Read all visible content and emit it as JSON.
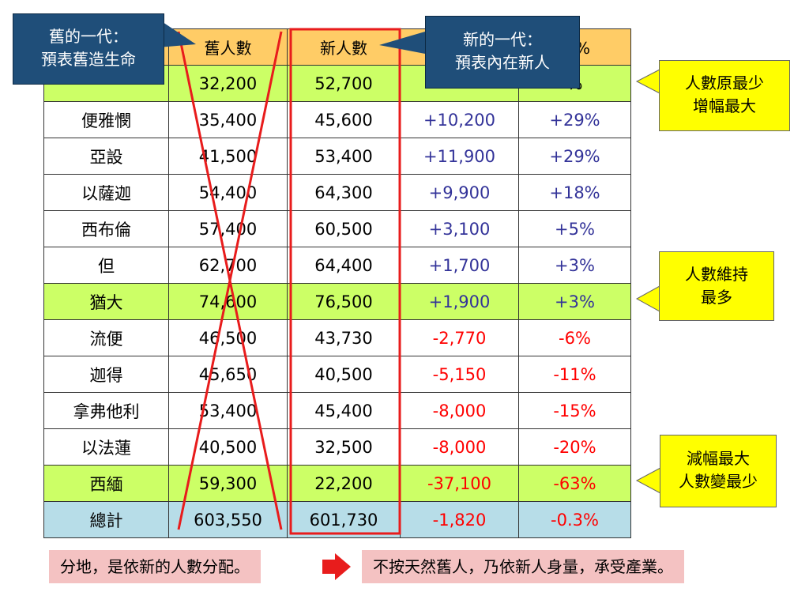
{
  "chart_data": {
    "type": "table",
    "columns": [
      "",
      "舊人數",
      "新人數",
      "",
      "減%"
    ],
    "rows": [
      {
        "name": "",
        "old": "32,200",
        "new": "52,700",
        "diff": "",
        "pct": "%",
        "highlight": true
      },
      {
        "name": "便雅憫",
        "old": "35,400",
        "new": "45,600",
        "diff": "+10,200",
        "pct": "+29%"
      },
      {
        "name": "亞設",
        "old": "41,500",
        "new": "53,400",
        "diff": "+11,900",
        "pct": "+29%"
      },
      {
        "name": "以薩迦",
        "old": "54,400",
        "new": "64,300",
        "diff": "+9,900",
        "pct": "+18%"
      },
      {
        "name": "西布倫",
        "old": "57,400",
        "new": "60,500",
        "diff": "+3,100",
        "pct": "+5%"
      },
      {
        "name": "但",
        "old": "62,700",
        "new": "64,400",
        "diff": "+1,700",
        "pct": "+3%"
      },
      {
        "name": "猶大",
        "old": "74,600",
        "new": "76,500",
        "diff": "+1,900",
        "pct": "+3%",
        "highlight": true
      },
      {
        "name": "流便",
        "old": "46,500",
        "new": "43,730",
        "diff": "-2,770",
        "pct": "-6%"
      },
      {
        "name": "迦得",
        "old": "45,650",
        "new": "40,500",
        "diff": "-5,150",
        "pct": "-11%"
      },
      {
        "name": "拿弗他利",
        "old": "53,400",
        "new": "45,400",
        "diff": "-8,000",
        "pct": "-15%"
      },
      {
        "name": "以法蓮",
        "old": "40,500",
        "new": "32,500",
        "diff": "-8,000",
        "pct": "-20%"
      },
      {
        "name": "西緬",
        "old": "59,300",
        "new": "22,200",
        "diff": "-37,100",
        "pct": "-63%",
        "highlight": true
      },
      {
        "name": "總計",
        "old": "603,550",
        "new": "601,730",
        "diff": "-1,820",
        "pct": "-0.3%",
        "total": true
      }
    ]
  },
  "callouts": {
    "old_generation": [
      "舊的一代：",
      "預表舊造生命"
    ],
    "new_generation": [
      "新的一代：",
      "預表內在新人"
    ],
    "least_grew_most": [
      "人數原最少",
      "增幅最大"
    ],
    "kept_most": [
      "人數維持",
      "最多"
    ],
    "dropped_most": [
      "減幅最大",
      "人數變最少"
    ]
  },
  "bottom": {
    "left": "分地，是依新的人數分配。",
    "right": "不按天然舊人，乃依新人身量，承受產業。"
  },
  "colors": {
    "header": "#ffcc66",
    "highlight": "#ccff66",
    "total": "#b7dde8",
    "positive": "#333399",
    "negative": "#ff0000",
    "callout_dark": "#1f4e79",
    "callout_yellow": "#ffff00",
    "strike": "#e81c1c"
  }
}
